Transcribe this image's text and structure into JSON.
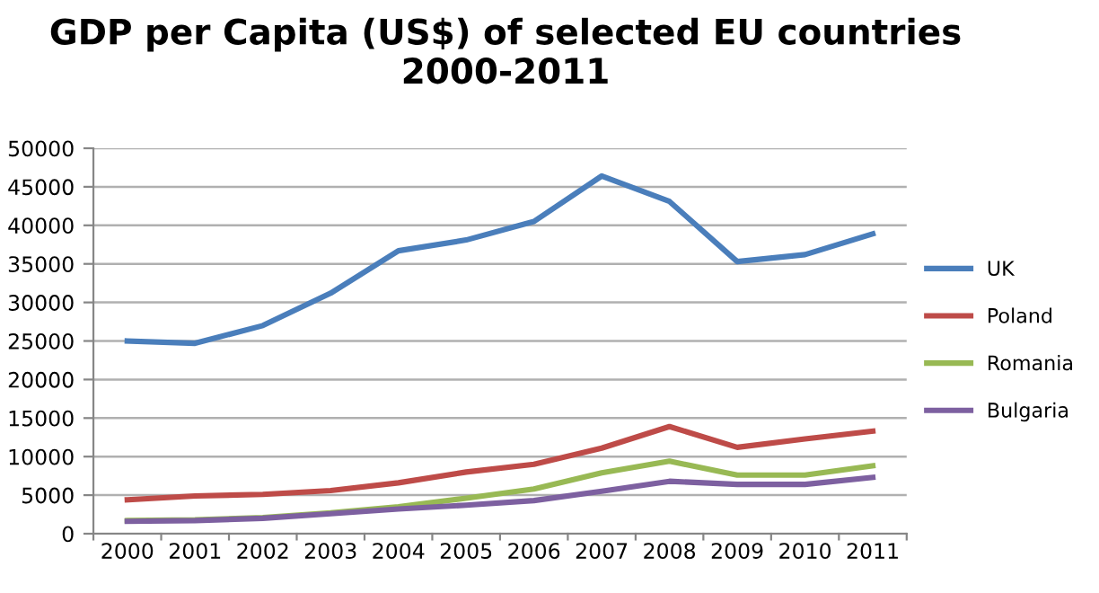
{
  "chart_data": {
    "type": "line",
    "title": "GDP per Capita (US$) of selected EU countries\n2000-2011",
    "categories": [
      "2000",
      "2001",
      "2002",
      "2003",
      "2004",
      "2005",
      "2006",
      "2007",
      "2008",
      "2009",
      "2010",
      "2011"
    ],
    "series": [
      {
        "name": "UK",
        "color": "#4a7ebb",
        "values": [
          25000,
          24700,
          27000,
          31200,
          36700,
          38100,
          40500,
          46400,
          43100,
          35300,
          36200,
          38900
        ]
      },
      {
        "name": "Poland",
        "color": "#be4b48",
        "values": [
          4400,
          4900,
          5100,
          5600,
          6600,
          8000,
          9000,
          11100,
          13900,
          11200,
          12300,
          13300
        ]
      },
      {
        "name": "Romania",
        "color": "#98b954",
        "values": [
          1700,
          1800,
          2100,
          2700,
          3500,
          4600,
          5800,
          7900,
          9400,
          7600,
          7600,
          8800
        ]
      },
      {
        "name": "Bulgaria",
        "color": "#7d60a0",
        "values": [
          1600,
          1700,
          2000,
          2600,
          3200,
          3700,
          4300,
          5500,
          6800,
          6400,
          6400,
          7300
        ]
      }
    ],
    "ylim": [
      0,
      50000
    ],
    "yticks": [
      0,
      5000,
      10000,
      15000,
      20000,
      25000,
      30000,
      35000,
      40000,
      45000,
      50000
    ],
    "grid": "y",
    "legend": "right",
    "marker": "none",
    "line_style": "solid"
  }
}
